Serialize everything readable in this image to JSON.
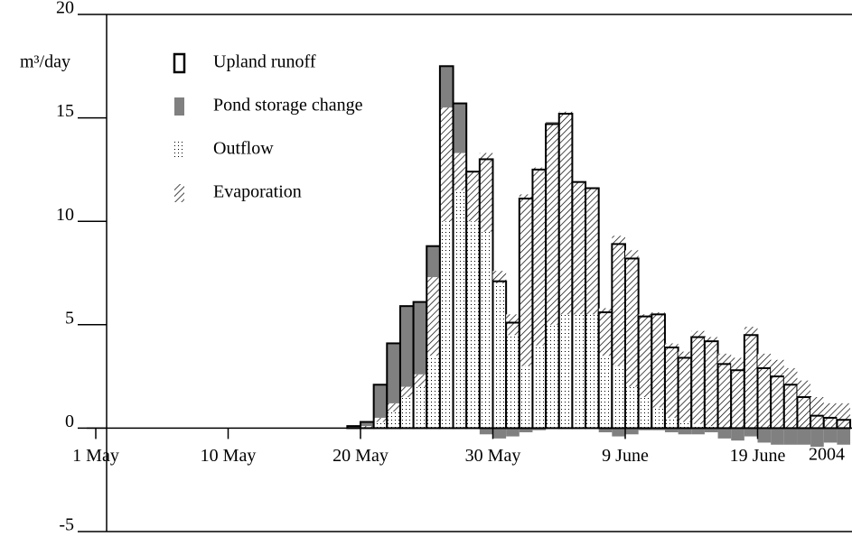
{
  "chart_data": {
    "type": "bar",
    "y_label": "m³/day",
    "year_label": "2004",
    "categories": [
      "1 May",
      null,
      null,
      null,
      null,
      null,
      null,
      null,
      null,
      null,
      "10 May",
      null,
      null,
      null,
      null,
      null,
      null,
      null,
      null,
      null,
      "20 May",
      null,
      null,
      null,
      null,
      null,
      null,
      null,
      null,
      null,
      "30 May",
      null,
      null,
      null,
      null,
      null,
      null,
      null,
      null,
      null,
      "9 June",
      null,
      null,
      null,
      null,
      null,
      null,
      null,
      null,
      null,
      "19 June",
      null,
      null,
      null,
      null,
      null,
      null
    ],
    "series": [
      {
        "name": "Upland runoff",
        "color": "#000000",
        "values": [
          0,
          0,
          0,
          0,
          0,
          0,
          0,
          0,
          0,
          0,
          0,
          0,
          0,
          0,
          0,
          0,
          0,
          0,
          0,
          0.1,
          0.3,
          2.1,
          4.1,
          5.9,
          6.1,
          8.8,
          17.5,
          15.7,
          12.4,
          13.0,
          7.1,
          5.1,
          11.1,
          12.5,
          14.7,
          15.2,
          11.9,
          11.6,
          5.6,
          8.9,
          8.2,
          5.4,
          5.5,
          3.9,
          3.4,
          4.4,
          4.2,
          3.1,
          2.8,
          4.5,
          2.9,
          2.5,
          2.1,
          1.5,
          0.6,
          0.5,
          0.4
        ]
      },
      {
        "name": "Pond storage change",
        "color": "#808080",
        "values": [
          0,
          0,
          0,
          0,
          0,
          0,
          0,
          0,
          0,
          0,
          0,
          0,
          0,
          0,
          0,
          0,
          0,
          0,
          0,
          0.1,
          0.2,
          1.6,
          2.9,
          3.9,
          3.5,
          1.5,
          2.0,
          2.4,
          0,
          -0.3,
          -0.5,
          -0.4,
          -0.2,
          -0.1,
          0.1,
          0,
          0,
          0,
          -0.2,
          -0.4,
          -0.3,
          -0.1,
          -0.1,
          -0.2,
          -0.3,
          -0.3,
          -0.2,
          -0.5,
          -0.6,
          -0.4,
          -0.7,
          -0.8,
          -0.8,
          -0.8,
          -0.9,
          -0.7,
          -0.8
        ]
      },
      {
        "name": "Outflow",
        "color": "#000000",
        "values": [
          0,
          0,
          0,
          0,
          0,
          0,
          0,
          0,
          0,
          0,
          0,
          0,
          0,
          0,
          0,
          0,
          0,
          0,
          0,
          0,
          0,
          0.3,
          0.8,
          1.5,
          2.0,
          3.5,
          10.0,
          11.5,
          10.0,
          9.5,
          7.0,
          4.5,
          3.0,
          4.0,
          5.0,
          5.5,
          5.5,
          5.5,
          3.5,
          3.0,
          2.0,
          1.5,
          1.0,
          0.5,
          0.3,
          0.2,
          0.1,
          0,
          0,
          0,
          0,
          0,
          0,
          0,
          0,
          0,
          0
        ]
      },
      {
        "name": "Evaporation",
        "color": "#000000",
        "values": [
          0,
          0,
          0,
          0,
          0,
          0,
          0,
          0,
          0,
          0,
          0,
          0,
          0,
          0,
          0,
          0,
          0,
          0,
          0,
          0,
          0.1,
          0.2,
          0.4,
          0.5,
          0.6,
          3.8,
          5.5,
          1.8,
          2.4,
          3.8,
          0.6,
          1.0,
          8.3,
          8.6,
          9.7,
          9.8,
          6.4,
          6.1,
          2.3,
          6.3,
          6.6,
          4.0,
          4.6,
          3.6,
          3.4,
          4.5,
          4.3,
          3.6,
          3.4,
          4.9,
          3.6,
          3.3,
          2.9,
          2.3,
          1.5,
          1.2,
          1.2
        ]
      }
    ],
    "ylim": [
      -5,
      20
    ],
    "yticks": [
      -5,
      0,
      5,
      10,
      15,
      20
    ]
  }
}
